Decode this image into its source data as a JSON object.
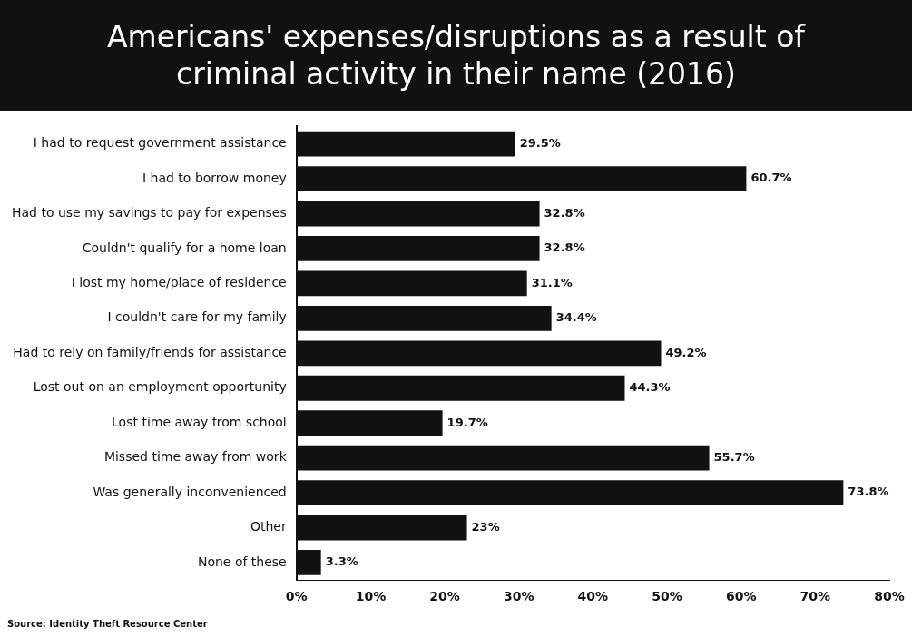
{
  "chart_data": {
    "type": "bar",
    "orientation": "horizontal",
    "title": "Americans' expenses/disruptions as a result of criminal activity in their name (2016)",
    "categories": [
      "I had to request government assistance",
      "I had to borrow money",
      "Had to use my savings to pay for expenses",
      "Couldn't qualify for a home loan",
      "I lost my home/place of residence",
      "I couldn't care for my family",
      "Had to rely on family/friends for assistance",
      "Lost out on an employment opportunity",
      "Lost time away from school",
      "Missed time away from work",
      "Was generally inconvenienced",
      "Other",
      "None of these"
    ],
    "values": [
      29.5,
      60.7,
      32.8,
      32.8,
      31.1,
      34.4,
      49.2,
      44.3,
      19.7,
      55.7,
      73.8,
      23,
      3.3
    ],
    "value_labels": [
      "29.5%",
      "60.7%",
      "32.8%",
      "32.8%",
      "31.1%",
      "34.4%",
      "49.2%",
      "44.3%",
      "19.7%",
      "55.7%",
      "73.8%",
      "23%",
      "3.3%"
    ],
    "color": "#111111",
    "xlim": [
      0,
      80
    ],
    "xticks": [
      {
        "value": 0,
        "label": "0%"
      },
      {
        "value": 10,
        "label": "10%"
      },
      {
        "value": 20,
        "label": "20%"
      },
      {
        "value": 30,
        "label": "30%"
      },
      {
        "value": 40,
        "label": "40%"
      },
      {
        "value": 50,
        "label": "50%"
      },
      {
        "value": 60,
        "label": "60%"
      },
      {
        "value": 70,
        "label": "70%"
      },
      {
        "value": 80,
        "label": "80%"
      }
    ],
    "grid": false,
    "legend": false,
    "annotations": [
      "Source: Identity Theft Resource Center"
    ]
  }
}
